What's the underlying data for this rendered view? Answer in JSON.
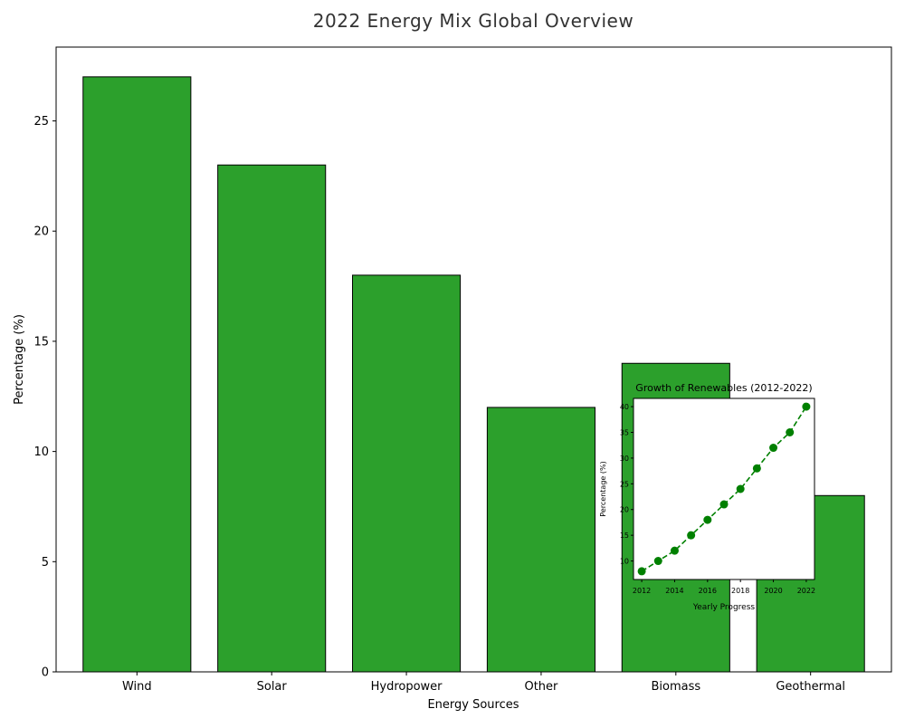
{
  "chart_data": [
    {
      "type": "bar",
      "title": "2022 Energy Mix Global Overview",
      "xlabel": "Energy Sources",
      "ylabel": "Percentage (%)",
      "categories": [
        "Wind",
        "Solar",
        "Hydropower",
        "Other",
        "Biomass",
        "Geothermal"
      ],
      "values": [
        27,
        23,
        18,
        12,
        14,
        8
      ],
      "ylim": [
        0,
        28.35
      ],
      "yticks": [
        0,
        5,
        10,
        15,
        20,
        25
      ],
      "bar_color": "#2ca02c",
      "edge_color": "#000000",
      "grid": false
    },
    {
      "type": "line",
      "title": "Growth of Renewables (2012-2022)",
      "xlabel": "Yearly Progress",
      "ylabel": "Percentage (%)",
      "x": [
        2012,
        2013,
        2014,
        2015,
        2016,
        2017,
        2018,
        2019,
        2020,
        2021,
        2022
      ],
      "values": [
        8,
        10,
        12,
        15,
        18,
        21,
        24,
        28,
        32,
        35,
        40
      ],
      "xlim": [
        2011.5,
        2022.5
      ],
      "ylim": [
        6.4,
        41.6
      ],
      "xticks": [
        2012,
        2014,
        2016,
        2018,
        2020,
        2022
      ],
      "yticks": [
        10,
        15,
        20,
        25,
        30,
        35,
        40
      ],
      "line_style": "dashed",
      "marker": "circle",
      "color": "#008000",
      "grid": false
    }
  ]
}
